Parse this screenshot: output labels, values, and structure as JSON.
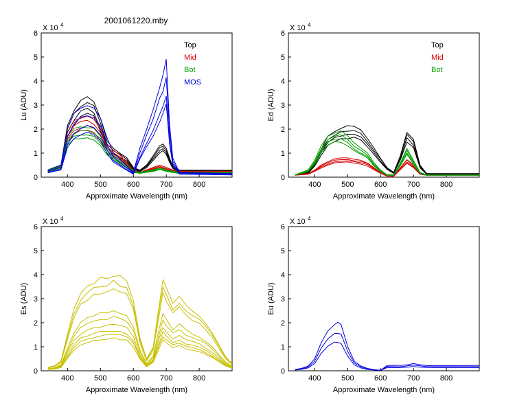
{
  "figure_title": "2001061220.mby",
  "colors": {
    "black": "#000000",
    "red": "#d40000",
    "green": "#00a000",
    "blue": "#0000e0",
    "yellow": "#c8c000"
  },
  "chart_data": [
    {
      "id": "lu",
      "type": "line",
      "ylabel": "Lu (ADU)",
      "xlabel": "Approximate Wavelength (nm)",
      "xlim": [
        320,
        900
      ],
      "ylim": [
        0,
        6
      ],
      "y_multiplier": "X 10",
      "y_exponent": "4",
      "xticks": [
        400,
        500,
        600,
        700,
        800
      ],
      "yticks": [
        0,
        1,
        2,
        3,
        4,
        5,
        6
      ],
      "legend": [
        "Top",
        "Mid",
        "Bot",
        "MOS"
      ],
      "series": [
        {
          "name": "Top",
          "color": "black",
          "x": [
            340,
            380,
            400,
            420,
            440,
            460,
            480,
            500,
            520,
            540,
            560,
            580,
            600,
            620,
            640,
            660,
            680,
            690,
            700,
            710,
            720,
            740,
            900
          ],
          "values": [
            0.3,
            0.5,
            2.2,
            2.8,
            3.2,
            3.35,
            3.2,
            2.4,
            1.5,
            1.2,
            1.0,
            0.8,
            0.4,
            0.3,
            0.5,
            0.9,
            1.3,
            1.4,
            1.2,
            0.8,
            0.45,
            0.3,
            0.28
          ]
        },
        {
          "name": "Mid",
          "color": "red",
          "x": [
            340,
            380,
            400,
            420,
            440,
            460,
            480,
            500,
            520,
            540,
            560,
            580,
            600,
            620,
            640,
            660,
            680,
            700,
            720,
            740,
            900
          ],
          "values": [
            0.3,
            0.5,
            1.9,
            2.3,
            2.45,
            2.5,
            2.4,
            2.0,
            1.4,
            1.1,
            0.9,
            0.6,
            0.3,
            0.2,
            0.3,
            0.4,
            0.5,
            0.4,
            0.3,
            0.25,
            0.25
          ]
        },
        {
          "name": "Bot",
          "color": "green",
          "x": [
            340,
            380,
            400,
            420,
            440,
            460,
            480,
            500,
            520,
            540,
            560,
            580,
            600,
            620,
            640,
            660,
            680,
            700,
            720,
            740,
            900
          ],
          "values": [
            0.3,
            0.5,
            1.7,
            2.0,
            2.1,
            2.1,
            2.0,
            1.7,
            1.2,
            0.9,
            0.7,
            0.5,
            0.25,
            0.2,
            0.25,
            0.3,
            0.4,
            0.3,
            0.25,
            0.2,
            0.2
          ]
        },
        {
          "name": "MOS",
          "color": "blue",
          "x": [
            340,
            380,
            400,
            420,
            440,
            460,
            480,
            500,
            520,
            540,
            600,
            620,
            640,
            660,
            680,
            690,
            700,
            710,
            720,
            740,
            900
          ],
          "values": [
            0.3,
            0.5,
            2.0,
            2.6,
            2.9,
            3.0,
            2.9,
            2.5,
            1.6,
            1.0,
            0.2,
            1.2,
            2.0,
            2.8,
            3.8,
            4.2,
            4.8,
            2.2,
            0.8,
            0.2,
            0.15
          ]
        }
      ]
    },
    {
      "id": "ed",
      "type": "line",
      "ylabel": "Ed  (ADU)",
      "xlabel": "Approximate Wavelength (nm)",
      "xlim": [
        320,
        900
      ],
      "ylim": [
        0,
        6
      ],
      "y_multiplier": "X 10",
      "y_exponent": "4",
      "xticks": [
        400,
        500,
        600,
        700,
        800
      ],
      "yticks": [
        0,
        1,
        2,
        3,
        4,
        5,
        6
      ],
      "legend": [
        "Top",
        "Mid",
        "Bot"
      ],
      "series": [
        {
          "name": "Top",
          "color": "black",
          "x": [
            340,
            380,
            400,
            420,
            440,
            460,
            480,
            500,
            520,
            540,
            560,
            580,
            600,
            620,
            640,
            660,
            680,
            700,
            720,
            740,
            900
          ],
          "values": [
            0.1,
            0.2,
            0.6,
            1.2,
            1.7,
            1.9,
            2.05,
            2.1,
            2.1,
            2.0,
            1.6,
            1.2,
            0.8,
            0.4,
            0.2,
            0.9,
            1.9,
            1.6,
            0.5,
            0.15,
            0.15
          ]
        },
        {
          "name": "Mid",
          "color": "red",
          "x": [
            340,
            380,
            400,
            420,
            440,
            460,
            480,
            500,
            520,
            540,
            560,
            580,
            600,
            620,
            640,
            660,
            680,
            700,
            720,
            740,
            900
          ],
          "values": [
            0.1,
            0.15,
            0.3,
            0.5,
            0.65,
            0.75,
            0.8,
            0.8,
            0.75,
            0.7,
            0.6,
            0.4,
            0.2,
            0.05,
            0.05,
            0.4,
            0.75,
            0.5,
            0.15,
            0.1,
            0.1
          ]
        },
        {
          "name": "Bot",
          "color": "green",
          "x": [
            340,
            380,
            400,
            420,
            440,
            460,
            480,
            500,
            520,
            540,
            560,
            580,
            600,
            620,
            640,
            660,
            680,
            700,
            720,
            740,
            900
          ],
          "values": [
            0.1,
            0.3,
            0.7,
            1.3,
            1.7,
            1.85,
            1.9,
            1.7,
            1.4,
            1.2,
            1.0,
            0.6,
            0.3,
            0.1,
            0.1,
            0.6,
            1.2,
            0.7,
            0.2,
            0.1,
            0.1
          ]
        }
      ]
    },
    {
      "id": "es",
      "type": "line",
      "ylabel": "Es  (ADU)",
      "xlabel": "Approximate Wavelength (nm)",
      "xlim": [
        320,
        900
      ],
      "ylim": [
        0,
        6
      ],
      "y_multiplier": "X 10",
      "y_exponent": "4",
      "xticks": [
        400,
        500,
        600,
        700,
        800
      ],
      "yticks": [
        0,
        1,
        2,
        3,
        4,
        5,
        6
      ],
      "series": [
        {
          "name": "Es",
          "color": "yellow",
          "x": [
            340,
            360,
            380,
            400,
            420,
            440,
            460,
            480,
            500,
            520,
            540,
            560,
            580,
            600,
            620,
            640,
            660,
            680,
            690,
            700,
            720,
            740,
            760,
            780,
            800,
            820,
            840,
            860,
            880,
            900
          ],
          "values": [
            0.15,
            0.2,
            0.4,
            1.5,
            2.6,
            3.2,
            3.5,
            3.7,
            3.85,
            3.9,
            4.0,
            3.9,
            3.7,
            3.0,
            1.4,
            0.5,
            1.0,
            2.9,
            3.8,
            3.4,
            2.8,
            3.1,
            2.7,
            2.5,
            2.3,
            2.0,
            1.6,
            1.1,
            0.6,
            0.3
          ]
        }
      ]
    },
    {
      "id": "eu",
      "type": "line",
      "ylabel": "Eu  (ADU)",
      "xlabel": "Approximate Wavelength (nm)",
      "xlim": [
        320,
        900
      ],
      "ylim": [
        0,
        6
      ],
      "y_multiplier": "X 10",
      "y_exponent": "4",
      "xticks": [
        400,
        500,
        600,
        700,
        800
      ],
      "yticks": [
        0,
        1,
        2,
        3,
        4,
        5,
        6
      ],
      "series": [
        {
          "name": "Eu",
          "color": "blue",
          "x": [
            340,
            360,
            380,
            400,
            420,
            440,
            460,
            470,
            480,
            500,
            520,
            540,
            560,
            580,
            600,
            620,
            650,
            660,
            680,
            700,
            720,
            740,
            800,
            900
          ],
          "values": [
            0.05,
            0.1,
            0.2,
            0.5,
            1.2,
            1.7,
            1.95,
            2.0,
            1.9,
            1.0,
            0.4,
            0.2,
            0.1,
            0.05,
            0.02,
            0.22,
            0.22,
            0.22,
            0.25,
            0.3,
            0.25,
            0.22,
            0.22,
            0.22
          ]
        }
      ]
    }
  ]
}
